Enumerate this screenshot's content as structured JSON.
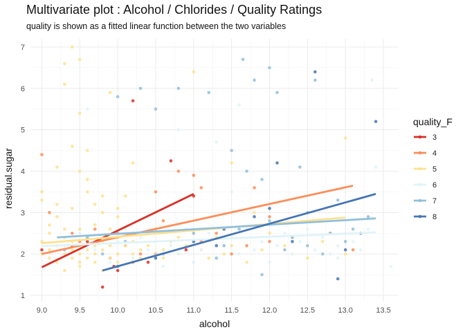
{
  "chart_data": {
    "type": "scatter",
    "title": "Multivariate plot : Alcohol / Chlorides / Quality Ratings",
    "subtitle": "quality is shown as a fitted linear function between the two variables",
    "xlabel": "alcohol",
    "ylabel": "residual.sugar",
    "xlim": [
      8.85,
      13.7
    ],
    "ylim": [
      0.85,
      7.2
    ],
    "xticks": [
      9.0,
      9.5,
      10.0,
      10.5,
      11.0,
      11.5,
      12.0,
      12.5,
      13.0,
      13.5
    ],
    "xtick_labels": [
      "9.0",
      "9.5",
      "10.0",
      "10.5",
      "11.0",
      "11.5",
      "12.0",
      "12.5",
      "13.0",
      "13.5"
    ],
    "yticks": [
      1,
      2,
      3,
      4,
      5,
      6,
      7
    ],
    "ytick_labels": [
      "1",
      "2",
      "3",
      "4",
      "5",
      "6",
      "7"
    ],
    "grid": true,
    "legend_title": "quality_F",
    "legend_position": "right",
    "series": [
      {
        "name": "3",
        "color": "#d73027",
        "points": [
          [
            9.0,
            2.1
          ],
          [
            9.4,
            2.2
          ],
          [
            9.6,
            2.3
          ],
          [
            9.8,
            1.2
          ],
          [
            9.95,
            1.7
          ],
          [
            10.2,
            5.7
          ],
          [
            10.4,
            1.8
          ],
          [
            10.7,
            4.25
          ],
          [
            10.9,
            2.1
          ],
          [
            11.0,
            3.4
          ],
          [
            10.5,
            2.0
          ],
          [
            10.0,
            1.6
          ]
        ],
        "fit": [
          [
            9.0,
            1.68
          ],
          [
            11.0,
            3.45
          ]
        ]
      },
      {
        "name": "4",
        "color": "#fc8d59",
        "points": [
          [
            9.0,
            4.4
          ],
          [
            9.1,
            3.0
          ],
          [
            9.4,
            2.5
          ],
          [
            9.5,
            2.3
          ],
          [
            9.7,
            2.6
          ],
          [
            9.9,
            1.9
          ],
          [
            10.0,
            2.5
          ],
          [
            10.1,
            2.2
          ],
          [
            10.2,
            1.8
          ],
          [
            10.3,
            2.0
          ],
          [
            10.5,
            2.6
          ],
          [
            10.6,
            2.8
          ],
          [
            10.8,
            4.0
          ],
          [
            11.0,
            3.9
          ],
          [
            11.1,
            3.6
          ],
          [
            11.3,
            2.5
          ],
          [
            11.5,
            2.0
          ],
          [
            11.7,
            2.2
          ],
          [
            11.8,
            3.6
          ],
          [
            12.0,
            2.3
          ],
          [
            12.3,
            2.4
          ],
          [
            12.8,
            2.5
          ],
          [
            13.1,
            2.1
          ],
          [
            12.0,
            2.9
          ],
          [
            11.1,
            2.3
          ],
          [
            10.5,
            3.5
          ]
        ],
        "fit": [
          [
            9.0,
            2.0
          ],
          [
            13.1,
            3.65
          ]
        ]
      },
      {
        "name": "5",
        "color": "#fee090",
        "points": [
          [
            9.0,
            2.0
          ],
          [
            9.0,
            2.3
          ],
          [
            9.0,
            3.5
          ],
          [
            9.1,
            2.1
          ],
          [
            9.1,
            2.5
          ],
          [
            9.1,
            1.9
          ],
          [
            9.2,
            2.2
          ],
          [
            9.2,
            1.8
          ],
          [
            9.2,
            4.1
          ],
          [
            9.3,
            2.0
          ],
          [
            9.3,
            2.4
          ],
          [
            9.3,
            6.6
          ],
          [
            9.3,
            6.1
          ],
          [
            9.3,
            1.6
          ],
          [
            9.4,
            2.1
          ],
          [
            9.4,
            2.3
          ],
          [
            9.4,
            1.9
          ],
          [
            9.4,
            3.1
          ],
          [
            9.4,
            4.6
          ],
          [
            9.4,
            7.0
          ],
          [
            9.5,
            2.0
          ],
          [
            9.5,
            2.2
          ],
          [
            9.5,
            2.6
          ],
          [
            9.5,
            1.8
          ],
          [
            9.5,
            1.7
          ],
          [
            9.5,
            4.0
          ],
          [
            9.5,
            6.7
          ],
          [
            9.5,
            5.4
          ],
          [
            9.6,
            2.1
          ],
          [
            9.6,
            2.4
          ],
          [
            9.6,
            1.9
          ],
          [
            9.6,
            3.8
          ],
          [
            9.6,
            4.5
          ],
          [
            9.7,
            2.2
          ],
          [
            9.7,
            2.0
          ],
          [
            9.7,
            1.8
          ],
          [
            9.7,
            3.2
          ],
          [
            9.7,
            2.7
          ],
          [
            9.8,
            2.1
          ],
          [
            9.8,
            2.3
          ],
          [
            9.8,
            1.6
          ],
          [
            9.8,
            3.0
          ],
          [
            9.9,
            2.2
          ],
          [
            9.9,
            1.9
          ],
          [
            9.9,
            2.6
          ],
          [
            9.9,
            5.9
          ],
          [
            10.0,
            2.0
          ],
          [
            10.0,
            2.4
          ],
          [
            10.0,
            1.8
          ],
          [
            10.0,
            2.9
          ],
          [
            10.1,
            2.2
          ],
          [
            10.1,
            3.4
          ],
          [
            10.2,
            2.0
          ],
          [
            10.2,
            2.3
          ],
          [
            10.2,
            4.2
          ],
          [
            10.3,
            2.1
          ],
          [
            10.3,
            1.9
          ],
          [
            10.4,
            2.2
          ],
          [
            10.4,
            2.5
          ],
          [
            10.5,
            2.0
          ],
          [
            10.5,
            2.6
          ],
          [
            10.5,
            3.0
          ],
          [
            10.6,
            2.1
          ],
          [
            10.6,
            1.9
          ],
          [
            10.7,
            2.3
          ],
          [
            10.8,
            2.0
          ],
          [
            10.8,
            2.4
          ],
          [
            10.9,
            2.2
          ],
          [
            11.0,
            6.4
          ],
          [
            11.0,
            2.3
          ],
          [
            11.0,
            2.5
          ],
          [
            11.1,
            2.1
          ],
          [
            11.2,
            1.9
          ],
          [
            11.3,
            2.4
          ],
          [
            11.4,
            2.0
          ],
          [
            11.5,
            4.2
          ],
          [
            11.5,
            2.2
          ],
          [
            11.7,
            1.8
          ],
          [
            11.8,
            3.0
          ],
          [
            11.9,
            2.1
          ],
          [
            12.0,
            2.5
          ],
          [
            12.2,
            2.2
          ],
          [
            12.5,
            1.9
          ],
          [
            12.7,
            2.3
          ],
          [
            13.0,
            4.8
          ],
          [
            13.0,
            2.0
          ],
          [
            9.1,
            2.7
          ],
          [
            9.2,
            2.9
          ],
          [
            9.3,
            2.6
          ],
          [
            9.6,
            3.5
          ],
          [
            9.8,
            3.4
          ],
          [
            10.0,
            3.1
          ],
          [
            9.0,
            3.3
          ],
          [
            9.2,
            3.2
          ]
        ],
        "fit": [
          [
            9.0,
            2.26
          ],
          [
            13.0,
            2.88
          ]
        ]
      },
      {
        "name": "6",
        "color": "#e0f3f8",
        "points": [
          [
            9.1,
            2.0
          ],
          [
            9.3,
            2.2
          ],
          [
            9.5,
            2.5
          ],
          [
            9.6,
            5.5
          ],
          [
            9.7,
            2.1
          ],
          [
            9.9,
            1.8
          ],
          [
            10.0,
            2.3
          ],
          [
            10.1,
            2.6
          ],
          [
            10.2,
            1.9
          ],
          [
            10.3,
            2.4
          ],
          [
            10.4,
            2.1
          ],
          [
            10.5,
            2.5
          ],
          [
            10.6,
            1.7
          ],
          [
            10.7,
            2.2
          ],
          [
            10.8,
            2.0
          ],
          [
            10.9,
            2.6
          ],
          [
            11.0,
            2.3
          ],
          [
            11.0,
            1.8
          ],
          [
            11.1,
            2.1
          ],
          [
            11.2,
            2.5
          ],
          [
            11.3,
            1.9
          ],
          [
            11.4,
            2.2
          ],
          [
            11.5,
            2.4
          ],
          [
            11.5,
            3.5
          ],
          [
            11.6,
            2.0
          ],
          [
            11.7,
            2.6
          ],
          [
            11.8,
            2.1
          ],
          [
            11.9,
            2.3
          ],
          [
            12.0,
            1.8
          ],
          [
            12.0,
            2.7
          ],
          [
            12.1,
            2.2
          ],
          [
            12.2,
            2.5
          ],
          [
            12.3,
            2.0
          ],
          [
            12.4,
            2.3
          ],
          [
            12.5,
            2.6
          ],
          [
            12.6,
            2.1
          ],
          [
            12.7,
            2.4
          ],
          [
            12.8,
            2.0
          ],
          [
            12.9,
            2.2
          ],
          [
            13.0,
            2.5
          ],
          [
            13.1,
            2.3
          ],
          [
            13.2,
            2.1
          ],
          [
            13.3,
            2.6
          ],
          [
            13.4,
            4.1
          ],
          [
            13.6,
            1.7
          ],
          [
            10.8,
            5.0
          ],
          [
            11.6,
            5.6
          ],
          [
            13.35,
            6.2
          ],
          [
            12.9,
            1.9
          ],
          [
            11.3,
            4.7
          ]
        ],
        "fit": [
          [
            9.0,
            2.19
          ],
          [
            13.4,
            2.52
          ]
        ]
      },
      {
        "name": "7",
        "color": "#91bfdb",
        "points": [
          [
            9.3,
            2.1
          ],
          [
            9.6,
            2.4
          ],
          [
            9.8,
            2.0
          ],
          [
            10.0,
            5.8
          ],
          [
            10.1,
            2.3
          ],
          [
            10.3,
            6.0
          ],
          [
            10.5,
            5.5
          ],
          [
            10.8,
            6.0
          ],
          [
            11.0,
            2.5
          ],
          [
            11.2,
            5.9
          ],
          [
            11.3,
            1.9
          ],
          [
            11.5,
            4.5
          ],
          [
            11.6,
            2.6
          ],
          [
            11.7,
            4.0
          ],
          [
            11.8,
            6.2
          ],
          [
            11.9,
            3.8
          ],
          [
            12.0,
            6.5
          ],
          [
            12.0,
            2.8
          ],
          [
            12.1,
            5.9
          ],
          [
            12.2,
            2.1
          ],
          [
            12.3,
            2.4
          ],
          [
            12.4,
            4.1
          ],
          [
            12.5,
            3.0
          ],
          [
            12.6,
            6.2
          ],
          [
            12.7,
            2.0
          ],
          [
            12.8,
            2.5
          ],
          [
            12.9,
            3.3
          ],
          [
            13.0,
            2.3
          ],
          [
            13.1,
            2.6
          ],
          [
            13.3,
            2.9
          ],
          [
            11.65,
            6.7
          ],
          [
            11.4,
            2.2
          ],
          [
            10.6,
            2.0
          ],
          [
            11.9,
            1.5
          ],
          [
            12.5,
            2.2
          ]
        ],
        "fit": [
          [
            9.2,
            2.4
          ],
          [
            13.4,
            2.86
          ]
        ]
      },
      {
        "name": "8",
        "color": "#4575b4",
        "points": [
          [
            10.0,
            1.7
          ],
          [
            10.5,
            1.9
          ],
          [
            11.0,
            2.3
          ],
          [
            11.4,
            2.6
          ],
          [
            11.8,
            2.9
          ],
          [
            12.0,
            3.1
          ],
          [
            12.3,
            2.3
          ],
          [
            12.6,
            6.4
          ],
          [
            12.9,
            1.4
          ],
          [
            13.0,
            2.1
          ],
          [
            13.2,
            2.5
          ],
          [
            13.4,
            5.2
          ],
          [
            12.1,
            4.2
          ],
          [
            11.3,
            2.2
          ]
        ],
        "fit": [
          [
            9.8,
            1.6
          ],
          [
            13.4,
            3.45
          ]
        ]
      }
    ]
  }
}
